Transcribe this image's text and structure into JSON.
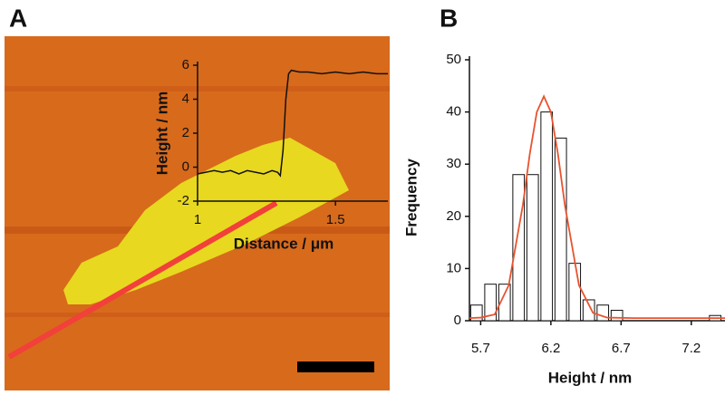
{
  "chart_data": [
    {
      "type": "line",
      "panel_label": "A",
      "xlabel": "Distance / μm",
      "ylabel": "Height / nm",
      "xlim": [
        1,
        1.69
      ],
      "ylim": [
        -2,
        6
      ],
      "xticks": [
        1,
        1.5
      ],
      "yticks": [
        -2,
        0,
        2,
        4,
        6
      ],
      "series": [
        {
          "color": "#111111",
          "x": [
            1.0,
            1.03,
            1.06,
            1.09,
            1.12,
            1.15,
            1.18,
            1.21,
            1.24,
            1.27,
            1.29,
            1.3,
            1.31,
            1.32,
            1.33,
            1.34,
            1.37,
            1.4,
            1.45,
            1.5,
            1.55,
            1.6,
            1.65,
            1.69
          ],
          "values": [
            -0.4,
            -0.3,
            -0.2,
            -0.3,
            -0.2,
            -0.4,
            -0.2,
            -0.3,
            -0.4,
            -0.2,
            -0.3,
            -0.5,
            1,
            4,
            5.5,
            5.7,
            5.6,
            5.6,
            5.5,
            5.6,
            5.5,
            5.6,
            5.5,
            5.5
          ]
        }
      ]
    },
    {
      "type": "histogram",
      "panel_label": "B",
      "xlabel": "Height / nm",
      "ylabel": "Frequency",
      "xlim": [
        5.62,
        7.44
      ],
      "ylim": [
        0,
        50
      ],
      "xticks": [
        5.7,
        6.2,
        6.7,
        7.2
      ],
      "yticks": [
        0,
        10,
        20,
        30,
        40,
        50
      ],
      "bins": [
        5.62,
        5.72,
        5.82,
        5.92,
        6.02,
        6.12,
        6.22,
        6.32,
        6.42,
        6.52,
        6.62,
        6.72,
        6.82,
        6.92,
        7.02,
        7.12,
        7.22,
        7.32,
        7.42
      ],
      "values": [
        3,
        7,
        7,
        28,
        28,
        40,
        35,
        11,
        4,
        3,
        2,
        0,
        0,
        0,
        0,
        0,
        0,
        1
      ],
      "color": "#ffffff",
      "fit": {
        "color": "#e8532f",
        "x": [
          5.62,
          5.7,
          5.8,
          5.9,
          6.0,
          6.05,
          6.1,
          6.15,
          6.2,
          6.25,
          6.3,
          6.4,
          6.5,
          6.6,
          6.8,
          7.0,
          7.44
        ],
        "values": [
          0.5,
          0.6,
          1.2,
          6.8,
          22.1,
          32,
          40,
          43,
          40,
          32,
          22.1,
          6.8,
          1.5,
          0.6,
          0.5,
          0.5,
          0.5
        ]
      }
    }
  ]
}
